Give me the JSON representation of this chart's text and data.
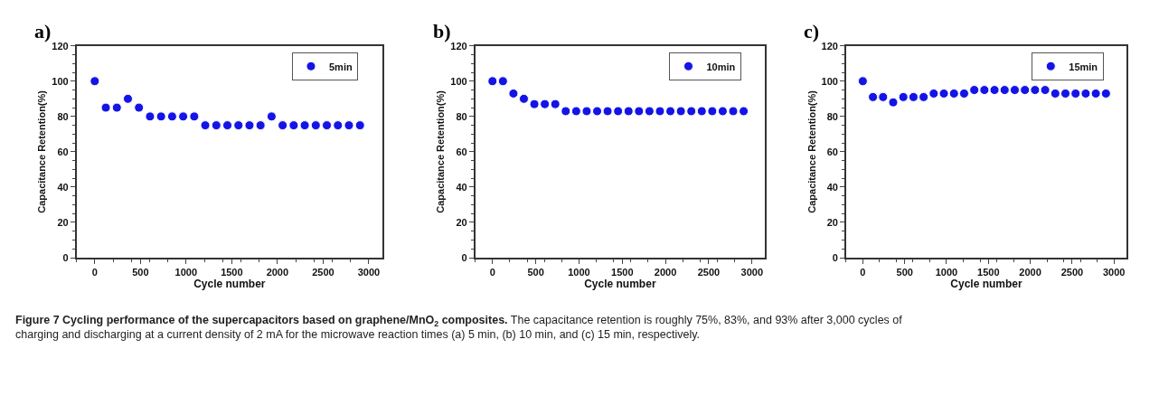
{
  "chart_data": [
    {
      "type": "scatter",
      "title": "a)",
      "xlabel": "Cycle number",
      "ylabel": "Capacitance Retention(%)",
      "marker": "circle",
      "legend": "top right",
      "x": [
        0,
        121,
        242,
        363,
        484,
        605,
        726,
        847,
        968,
        1089,
        1210,
        1331,
        1452,
        1573,
        1694,
        1815,
        1936,
        2057,
        2178,
        2299,
        2420,
        2541,
        2662,
        2783,
        2904
      ],
      "series": [
        {
          "name": "5min",
          "color": "#1414e6",
          "values": [
            100,
            85,
            85,
            90,
            85,
            80,
            80,
            80,
            80,
            80,
            75,
            75,
            75,
            75,
            75,
            75,
            80,
            75,
            75,
            75,
            75,
            75,
            75,
            75,
            75
          ]
        }
      ],
      "xlim": [
        -200,
        3150
      ],
      "xticks": [
        0,
        500,
        1000,
        1500,
        2000,
        2500,
        3000
      ],
      "ylim": [
        0,
        120
      ],
      "yticks": [
        0,
        20,
        40,
        60,
        80,
        100,
        120
      ],
      "annotations": [
        "Figure 7 Cycling performance of the supercapacitors based on graphene/MnO$_{2}$ composites.",
        "The capacitance retention is roughly 75%, 83%, and 93% after 3,000 cycles of charging and discharging at a current density of 2 mA for the microwave reaction times (a) 5 min, (b) 10 min, and (c) 15 min, respectively."
      ]
    },
    {
      "type": "scatter",
      "title": "b)",
      "xlabel": "Cycle number",
      "ylabel": "Capacitance Retention(%)",
      "marker": "circle",
      "legend": "top right",
      "x": [
        0,
        121,
        242,
        363,
        484,
        605,
        726,
        847,
        968,
        1089,
        1210,
        1331,
        1452,
        1573,
        1694,
        1815,
        1936,
        2057,
        2178,
        2299,
        2420,
        2541,
        2662,
        2783,
        2904
      ],
      "series": [
        {
          "name": "10min",
          "color": "#1414e6",
          "values": [
            100,
            100,
            93,
            90,
            87,
            87,
            87,
            83,
            83,
            83,
            83,
            83,
            83,
            83,
            83,
            83,
            83,
            83,
            83,
            83,
            83,
            83,
            83,
            83,
            83
          ]
        }
      ],
      "xlim": [
        -200,
        3150
      ],
      "xticks": [
        0,
        500,
        1000,
        1500,
        2000,
        2500,
        3000
      ],
      "ylim": [
        0,
        120
      ],
      "yticks": [
        0,
        20,
        40,
        60,
        80,
        100,
        120
      ]
    },
    {
      "type": "scatter",
      "title": "c)",
      "xlabel": "Cycle number",
      "ylabel": "Capacitance Retention(%)",
      "marker": "circle",
      "legend": "top right",
      "x": [
        0,
        121,
        242,
        363,
        484,
        605,
        726,
        847,
        968,
        1089,
        1210,
        1331,
        1452,
        1573,
        1694,
        1815,
        1936,
        2057,
        2178,
        2299,
        2420,
        2541,
        2662,
        2783,
        2904
      ],
      "series": [
        {
          "name": "15min",
          "color": "#1414e6",
          "values": [
            100,
            91,
            91,
            88,
            91,
            91,
            91,
            93,
            93,
            93,
            93,
            95,
            95,
            95,
            95,
            95,
            95,
            95,
            95,
            93,
            93,
            93,
            93,
            93,
            93
          ]
        }
      ],
      "xlim": [
        -200,
        3150
      ],
      "xticks": [
        0,
        500,
        1000,
        1500,
        2000,
        2500,
        3000
      ],
      "ylim": [
        0,
        120
      ],
      "yticks": [
        0,
        20,
        40,
        60,
        80,
        100,
        120
      ]
    }
  ]
}
